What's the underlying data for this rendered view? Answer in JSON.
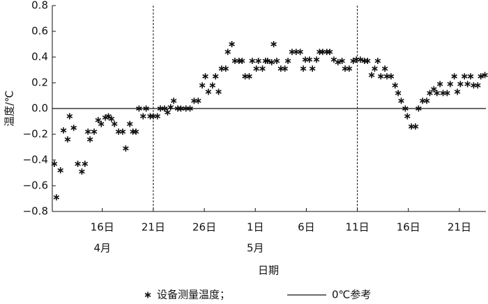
{
  "chart_data": {
    "type": "scatter",
    "x_label": "日期",
    "y_label": "温度/℃",
    "xlim": [
      11.1,
      53.6
    ],
    "ylim": [
      -0.8,
      0.8
    ],
    "xticks": [
      {
        "value": 16,
        "label": "16日"
      },
      {
        "value": 21,
        "label": "21日"
      },
      {
        "value": 26,
        "label": "26日"
      },
      {
        "value": 31,
        "label": "1日"
      },
      {
        "value": 36,
        "label": "6日"
      },
      {
        "value": 41,
        "label": "11日"
      },
      {
        "value": 46,
        "label": "16日"
      },
      {
        "value": 51,
        "label": "21日"
      }
    ],
    "yticks": [
      0.8,
      0.6,
      0.4,
      0.2,
      {
        "value": 0,
        "label": "0.0"
      },
      {
        "value": -0.2,
        "label": "−0.2"
      },
      {
        "value": -0.4,
        "label": "−0.4"
      },
      {
        "value": -0.6,
        "label": "−0.6"
      },
      {
        "value": -0.8,
        "label": "−0.8"
      }
    ],
    "annotations": [
      {
        "text": "4月",
        "x": 16
      },
      {
        "text": "5月",
        "x": 31
      }
    ],
    "vlines": [
      21,
      41
    ],
    "reference_line": {
      "name": "0℃参考",
      "value": 0,
      "color": "#111"
    },
    "series": [
      {
        "name": "设备测量温度；",
        "color": "#111",
        "x": [
          11.3,
          11.5,
          11.9,
          12.2,
          12.6,
          12.8,
          13.2,
          13.6,
          14.0,
          14.3,
          14.6,
          14.8,
          15.2,
          15.6,
          15.9,
          16.3,
          16.6,
          16.9,
          17.2,
          17.6,
          18.0,
          18.3,
          18.7,
          19.0,
          19.3,
          19.6,
          20.0,
          20.3,
          20.7,
          21.0,
          21.4,
          21.7,
          22.1,
          22.4,
          22.7,
          23.0,
          23.4,
          23.7,
          24.2,
          24.6,
          25.0,
          25.4,
          25.8,
          26.1,
          26.4,
          26.8,
          27.1,
          27.4,
          27.7,
          28.1,
          28.3,
          28.7,
          29.0,
          29.4,
          29.7,
          30.0,
          30.4,
          30.7,
          31.1,
          31.3,
          31.7,
          32.0,
          32.2,
          32.6,
          32.8,
          33.1,
          33.5,
          33.9,
          34.2,
          34.6,
          35.0,
          35.4,
          35.7,
          35.9,
          36.3,
          36.6,
          37.0,
          37.3,
          37.6,
          38.0,
          38.3,
          38.7,
          39.1,
          39.5,
          39.8,
          40.2,
          40.6,
          40.9,
          41.3,
          41.7,
          42.0,
          42.4,
          42.7,
          43.0,
          43.3,
          43.7,
          43.9,
          44.3,
          44.7,
          45.0,
          45.3,
          45.7,
          45.9,
          46.3,
          46.7,
          47.0,
          47.4,
          47.8,
          48.1,
          48.5,
          48.8,
          49.1,
          49.4,
          49.8,
          50.1,
          50.5,
          50.8,
          51.1,
          51.5,
          51.8,
          52.1,
          52.4,
          52.8,
          53.1,
          53.5
        ],
        "values": [
          -0.43,
          -0.69,
          -0.48,
          -0.17,
          -0.24,
          -0.06,
          -0.15,
          -0.43,
          -0.49,
          -0.43,
          -0.18,
          -0.24,
          -0.18,
          -0.09,
          -0.12,
          -0.07,
          -0.06,
          -0.08,
          -0.12,
          -0.18,
          -0.18,
          -0.31,
          -0.12,
          -0.18,
          -0.18,
          0.0,
          -0.06,
          0.0,
          -0.06,
          -0.06,
          -0.06,
          0.0,
          0.0,
          -0.03,
          0.01,
          0.06,
          0.0,
          0.0,
          0.0,
          0.0,
          0.06,
          0.06,
          0.18,
          0.25,
          0.13,
          0.18,
          0.25,
          0.13,
          0.31,
          0.31,
          0.44,
          0.5,
          0.37,
          0.37,
          0.37,
          0.25,
          0.25,
          0.37,
          0.31,
          0.37,
          0.31,
          0.37,
          0.37,
          0.36,
          0.5,
          0.37,
          0.31,
          0.31,
          0.37,
          0.44,
          0.44,
          0.44,
          0.31,
          0.38,
          0.38,
          0.31,
          0.38,
          0.44,
          0.44,
          0.44,
          0.44,
          0.38,
          0.36,
          0.37,
          0.31,
          0.31,
          0.37,
          0.38,
          0.38,
          0.37,
          0.37,
          0.26,
          0.31,
          0.37,
          0.25,
          0.31,
          0.25,
          0.25,
          0.18,
          0.12,
          0.06,
          0.0,
          -0.06,
          -0.14,
          -0.14,
          0.0,
          0.06,
          0.06,
          0.12,
          0.15,
          0.12,
          0.19,
          0.12,
          0.12,
          0.19,
          0.25,
          0.13,
          0.19,
          0.25,
          0.19,
          0.25,
          0.18,
          0.18,
          0.25,
          0.26
        ]
      }
    ]
  }
}
